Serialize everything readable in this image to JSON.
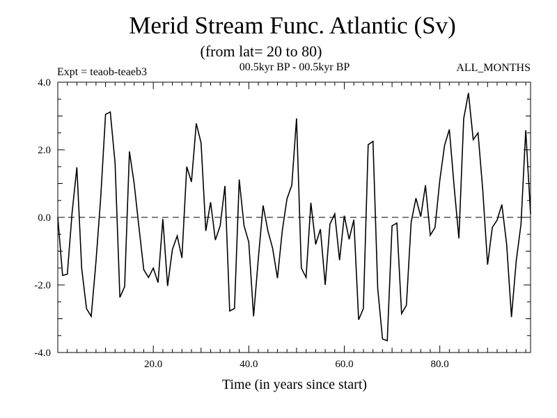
{
  "chart_data": {
    "type": "line",
    "title": "Merid Stream Func. Atlantic (Sv)",
    "subtitle": "(from lat= 20 to 80)",
    "expt_label": "Expt = teaob-teaeb3",
    "period_label": "00.5kyr BP - 00.5kyr BP",
    "months_label": "ALL_MONTHS",
    "xlabel": "Time (in years since start)",
    "ylabel": "",
    "xlim": [
      0,
      99
    ],
    "ylim": [
      -4.0,
      4.0
    ],
    "x_ticks": [
      20,
      40,
      60,
      80
    ],
    "x_tick_labels": [
      "20.0",
      "40.0",
      "60.0",
      "80.0"
    ],
    "y_ticks": [
      -4,
      -2,
      0,
      2,
      4
    ],
    "y_tick_labels": [
      "-4.0",
      "-2.0",
      "0.0",
      "2.0",
      "4.0"
    ],
    "zero_line": true,
    "x": [
      0,
      1,
      2,
      3,
      4,
      5,
      6,
      7,
      8,
      9,
      10,
      11,
      12,
      13,
      14,
      15,
      16,
      17,
      18,
      19,
      20,
      21,
      22,
      23,
      24,
      25,
      26,
      27,
      28,
      29,
      30,
      31,
      32,
      33,
      34,
      35,
      36,
      37,
      38,
      39,
      40,
      41,
      42,
      43,
      44,
      45,
      46,
      47,
      48,
      49,
      50,
      51,
      52,
      53,
      54,
      55,
      56,
      57,
      58,
      59,
      60,
      61,
      62,
      63,
      64,
      65,
      66,
      67,
      68,
      69,
      70,
      71,
      72,
      73,
      74,
      75,
      76,
      77,
      78,
      79,
      80,
      81,
      82,
      83,
      84,
      85,
      86,
      87,
      88,
      89,
      90,
      91,
      92,
      93,
      94,
      95,
      96,
      97,
      98,
      99
    ],
    "series": [
      {
        "name": "Merid Stream Func.",
        "values": [
          0.0,
          -1.72,
          -1.68,
          0.15,
          1.48,
          -1.5,
          -2.7,
          -2.93,
          -1.3,
          0.6,
          3.05,
          3.12,
          1.6,
          -2.37,
          -2.05,
          1.95,
          1.0,
          -0.3,
          -1.55,
          -1.78,
          -1.5,
          -1.93,
          -0.05,
          -2.03,
          -0.95,
          -0.55,
          -1.2,
          1.5,
          1.05,
          2.78,
          2.2,
          -0.4,
          0.45,
          -0.67,
          -0.25,
          0.93,
          -2.77,
          -2.7,
          1.12,
          -0.25,
          -0.73,
          -2.93,
          -1.2,
          0.35,
          -0.4,
          -0.92,
          -1.8,
          -0.4,
          0.55,
          0.95,
          2.93,
          -1.5,
          -1.78,
          0.43,
          -0.8,
          -0.35,
          -2.0,
          -0.2,
          0.1,
          -1.27,
          0.05,
          -0.65,
          -0.07,
          -3.03,
          -2.7,
          2.15,
          2.25,
          -2.1,
          -3.6,
          -3.65,
          -0.25,
          -0.17,
          -2.85,
          -2.6,
          -0.15,
          0.57,
          0.02,
          0.95,
          -0.53,
          -0.3,
          1.1,
          2.13,
          2.6,
          0.9,
          -0.62,
          2.92,
          3.68,
          2.3,
          2.5,
          0.8,
          -1.4,
          -0.3,
          -0.08,
          0.38,
          -0.8,
          -2.95,
          -1.3,
          -0.2,
          2.58,
          0.1
        ]
      }
    ]
  }
}
